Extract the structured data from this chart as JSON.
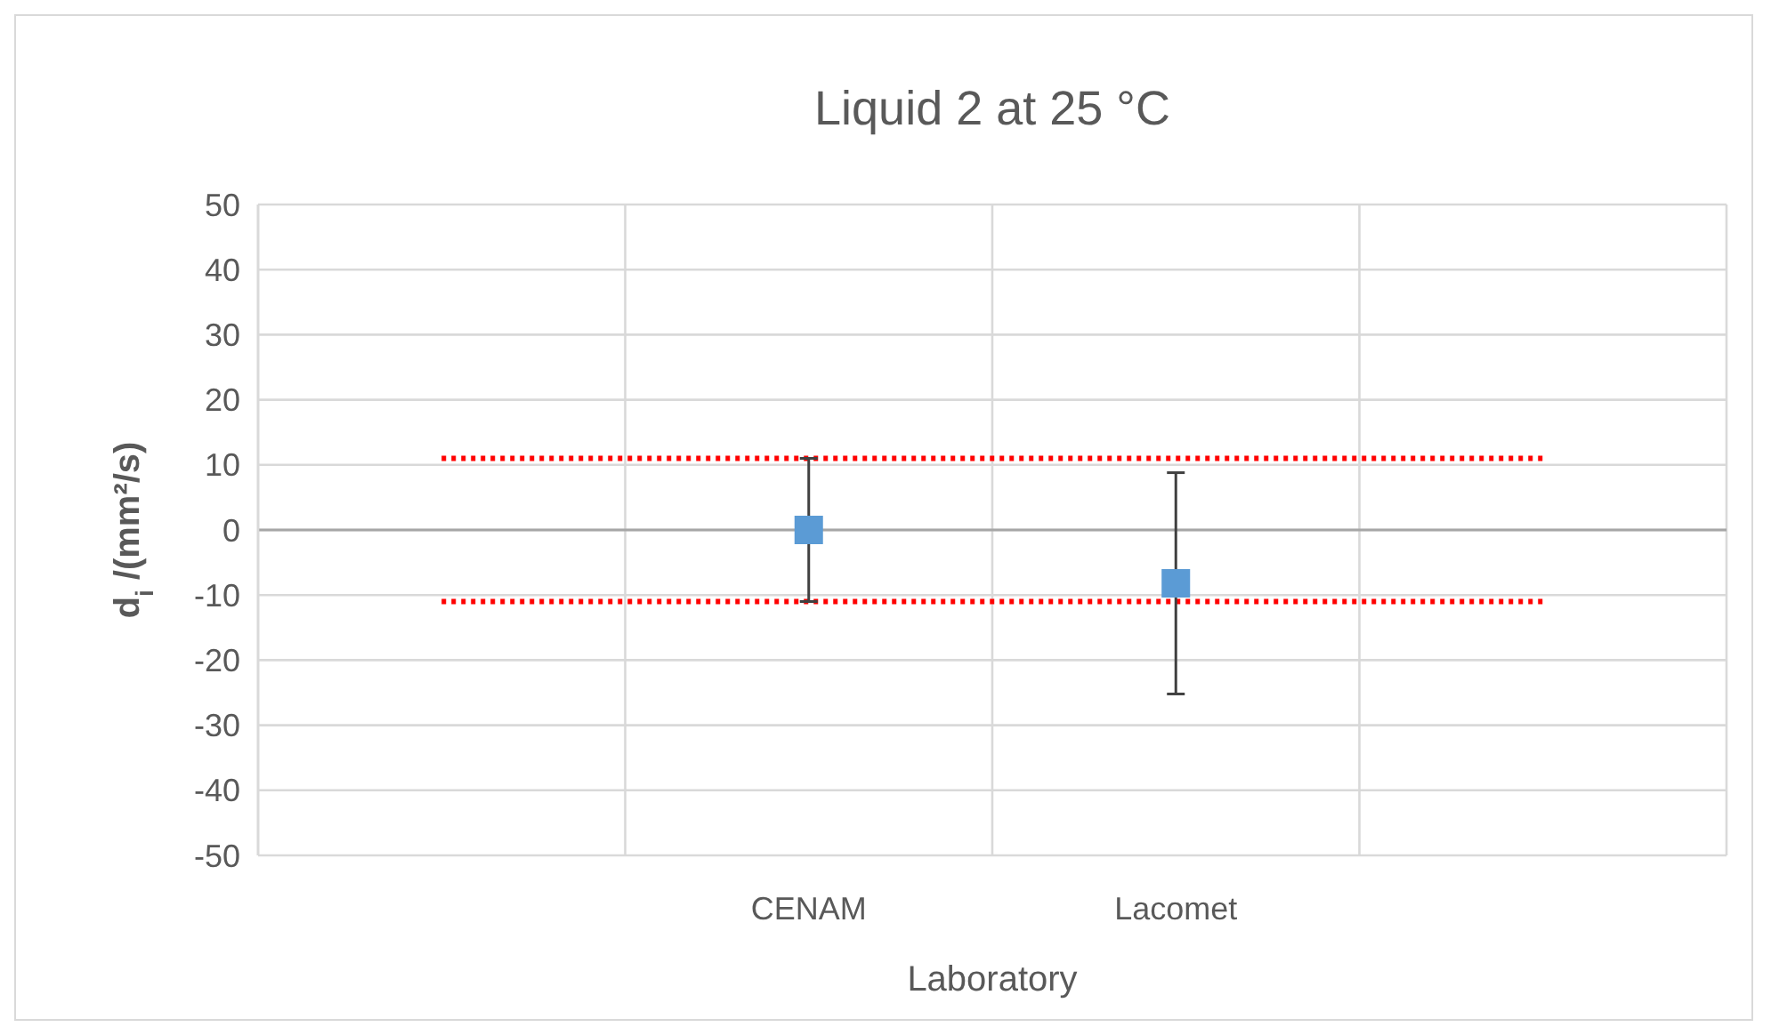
{
  "chart_data": {
    "type": "scatter",
    "title": "Liquid 2 at 25 °C",
    "xlabel": "Laboratory",
    "ylabel": "d$_{i}$ /(mm²/s)",
    "categories": [
      null,
      "CENAM",
      "Lacomet",
      null
    ],
    "ylim": [
      -50,
      50
    ],
    "yticks": [
      -50,
      -40,
      -30,
      -20,
      -10,
      0,
      10,
      20,
      30,
      40,
      50
    ],
    "grid": true,
    "series": [
      {
        "type": "line",
        "color": "#ff0000",
        "line_style": "dotted",
        "marker": "none",
        "values": [
          11,
          11,
          11,
          11
        ]
      },
      {
        "type": "line",
        "color": "#ff0000",
        "line_style": "dotted",
        "marker": "none",
        "values": [
          -11,
          -11,
          -11,
          -11
        ]
      },
      {
        "color": "#5b9bd5",
        "marker": "square",
        "values": [
          null,
          0,
          -8.2,
          null
        ],
        "errors": [
          null,
          11,
          17,
          null
        ]
      }
    ]
  }
}
